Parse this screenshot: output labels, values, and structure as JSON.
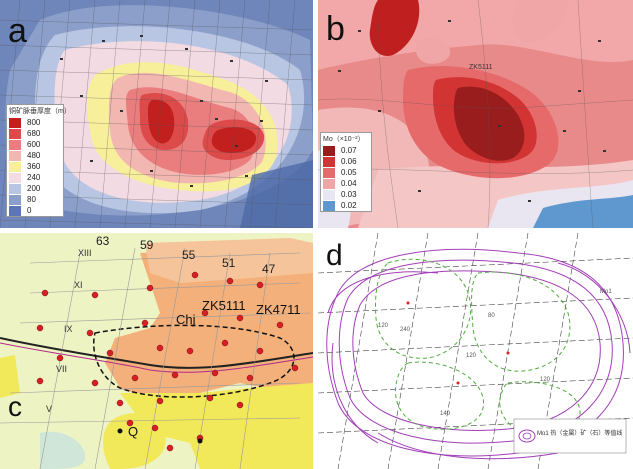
{
  "panels": {
    "a": {
      "letter": "a",
      "legend": {
        "title": "铜矿脉垂厚度（m）",
        "levels": [
          "800",
          "680",
          "600",
          "480",
          "360",
          "240",
          "200",
          "80",
          "0"
        ],
        "colors": [
          "#c21f1f",
          "#dc4a4a",
          "#ea7d7d",
          "#f3b7b1",
          "#f7ef9a",
          "#f3dbe3",
          "#b8c6e3",
          "#8c9fcb",
          "#5b76b3"
        ]
      }
    },
    "b": {
      "letter": "b",
      "drill_label": "ZK5111",
      "legend": {
        "title": "Mo（×10⁻²）",
        "levels": [
          "0.07",
          "0.06",
          "0.05",
          "0.04",
          "0.03",
          "0.02"
        ],
        "colors": [
          "#9a1d1d",
          "#d23333",
          "#e66a6a",
          "#f0a6a6",
          "#e7e6f2",
          "#5e98cf"
        ]
      }
    },
    "c": {
      "letter": "c",
      "lines": {
        "l63": "63",
        "l59": "59",
        "l55": "55",
        "l51": "51",
        "l47": "47",
        "r13": "XIII",
        "r11": "XI",
        "r9": "IX",
        "r7": "VII",
        "r5": "V"
      },
      "units": {
        "chj": "Chj",
        "q": "Q"
      },
      "drills": {
        "zk5111": "ZK5111",
        "zk4711": "ZK4711"
      }
    },
    "d": {
      "letter": "d",
      "annotations": {
        "a1": "Mo1",
        "a2": "240",
        "a3": "120",
        "a4": "120",
        "a5": "140",
        "a6": "120",
        "a7": "80"
      },
      "legend_text": "Mo1 热（金属）矿（石）等值线"
    }
  },
  "colors": {
    "blue_bg": "#6f86bb",
    "red_bg": "#d86f6f",
    "map_bg": "#eef3c4",
    "orange_unit": "#f4b07a",
    "yellow_unit": "#f2e95a",
    "purple_line": "#a33fb8",
    "green_dash": "#4fae3c"
  }
}
